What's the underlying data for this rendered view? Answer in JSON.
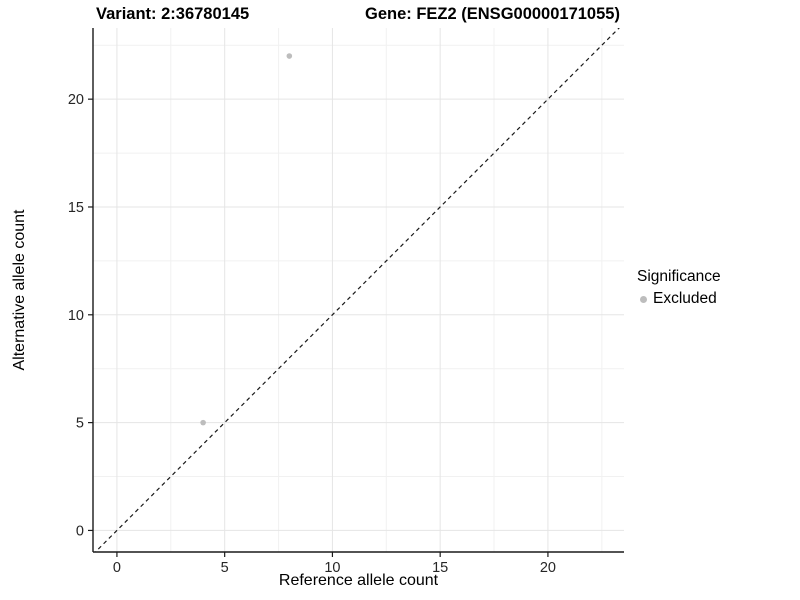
{
  "chart_data": {
    "type": "scatter",
    "titles": {
      "left": "Variant: 2:36780145",
      "right": "Gene: FEZ2 (ENSG00000171055)"
    },
    "xlabel": "Reference allele count",
    "ylabel": "Alternative allele count",
    "xlim": [
      -1.11,
      23.53
    ],
    "ylim": [
      -1.0,
      23.3
    ],
    "x_ticks": [
      0,
      5,
      10,
      15,
      20
    ],
    "y_ticks": [
      0,
      5,
      10,
      15,
      20
    ],
    "x_minor_ticks": [
      2.5,
      7.5,
      12.5,
      17.5,
      22.5
    ],
    "y_minor_ticks": [
      2.5,
      7.5,
      12.5,
      17.5,
      22.5
    ],
    "grid": "major+minor",
    "series": [
      {
        "name": "Excluded",
        "color": "#bdbdbd",
        "points": [
          {
            "x": 4,
            "y": 5
          },
          {
            "x": 8,
            "y": 22
          }
        ]
      }
    ],
    "reference_line": {
      "slope": 1,
      "intercept": 0,
      "style": "dashed",
      "color": "#1a1a1a"
    },
    "legend": {
      "title": "Significance",
      "position": "right",
      "entries": [
        {
          "label": "Excluded",
          "color": "#bdbdbd",
          "marker": "point"
        }
      ]
    },
    "colors": {
      "grid_major": "#e5e5e5",
      "grid_minor": "#f1f1f1",
      "axis_line": "#1a1a1a",
      "tick_text": "#262626"
    }
  }
}
